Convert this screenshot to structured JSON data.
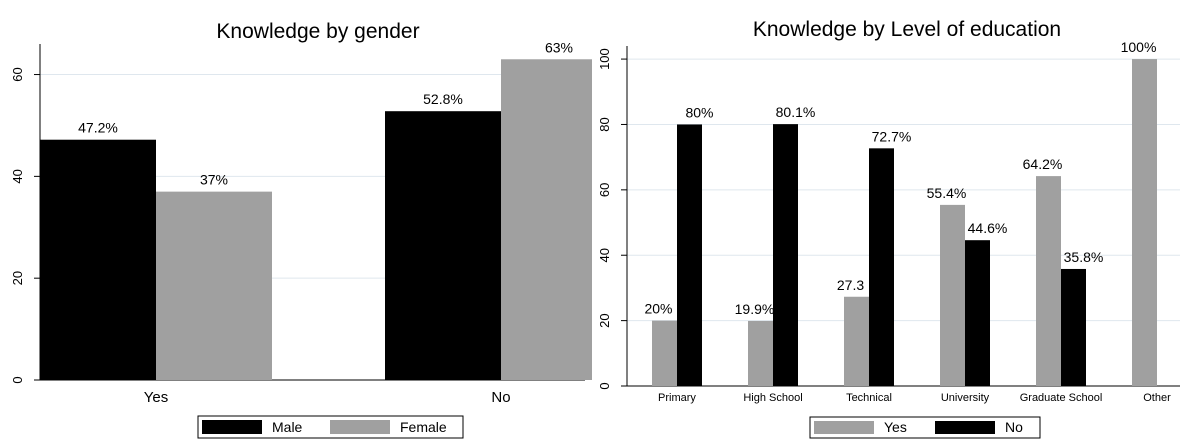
{
  "chart_data": [
    {
      "type": "bar",
      "title": "Knowledge by gender",
      "xlabel": "",
      "ylabel": "",
      "categories": [
        "Yes",
        "No"
      ],
      "series": [
        {
          "name": "Male",
          "values": [
            47.2,
            52.8
          ],
          "labels": [
            "47.2%",
            "52.8%"
          ],
          "color": "#000000"
        },
        {
          "name": "Female",
          "values": [
            37,
            63
          ],
          "labels": [
            "37%",
            "63%"
          ],
          "color": "#a0a0a0"
        }
      ],
      "ylim": [
        0,
        66
      ],
      "yticks": [
        0,
        20,
        40,
        60
      ],
      "grid": true,
      "legend": "bottom"
    },
    {
      "type": "bar",
      "title": "Knowledge by Level of education",
      "xlabel": "",
      "ylabel": "",
      "categories": [
        "Primary",
        "High School",
        "Technical",
        "University",
        "Graduate School",
        "Other"
      ],
      "series": [
        {
          "name": "Yes",
          "values": [
            20,
            19.9,
            27.3,
            55.4,
            64.2,
            100
          ],
          "labels": [
            "20%",
            "19.9%",
            "27.3",
            "55.4%",
            "64.2%",
            "100%"
          ],
          "color": "#a0a0a0"
        },
        {
          "name": "No",
          "values": [
            80,
            80.1,
            72.7,
            44.6,
            35.8,
            null
          ],
          "labels": [
            "80%",
            "80.1%",
            "72.7%",
            "44.6%",
            "35.8%",
            ""
          ],
          "color": "#000000"
        }
      ],
      "ylim": [
        0,
        104
      ],
      "yticks": [
        0,
        20,
        40,
        60,
        80,
        100
      ],
      "grid": true,
      "legend": "bottom"
    }
  ]
}
